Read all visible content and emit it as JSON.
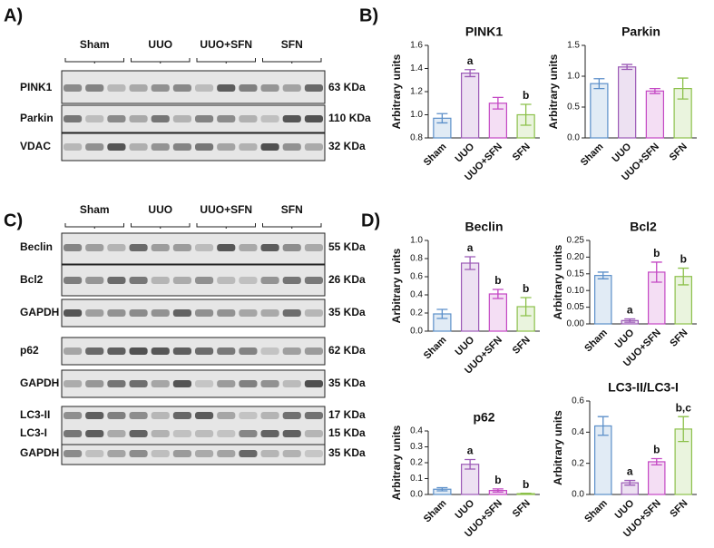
{
  "panel_labels": [
    "A)",
    "B)",
    "C)",
    "D)"
  ],
  "blots": [
    {
      "groups": [
        "Sham",
        "UUO",
        "UUO+SFN",
        "SFN"
      ],
      "rows": [
        {
          "labels": [
            "PINK1"
          ],
          "sizes": [
            "63 KDa"
          ]
        },
        {
          "labels": [
            "Parkin"
          ],
          "sizes": [
            "110 KDa"
          ]
        },
        {
          "labels": [
            "VDAC"
          ],
          "sizes": [
            "32 KDa"
          ]
        }
      ]
    },
    {
      "groups": [
        "Sham",
        "UUO",
        "UUO+SFN",
        "SFN"
      ],
      "rows": [
        {
          "labels": [
            "Beclin"
          ],
          "sizes": [
            "55 KDa"
          ]
        },
        {
          "labels": [
            "Bcl2"
          ],
          "sizes": [
            "26 KDa"
          ]
        },
        {
          "labels": [
            "GAPDH"
          ],
          "sizes": [
            "35 KDa"
          ]
        },
        {
          "labels": [
            "p62"
          ],
          "sizes": [
            "62 KDa"
          ]
        },
        {
          "labels": [
            "GAPDH"
          ],
          "sizes": [
            "35 KDa"
          ]
        },
        {
          "labels": [
            "LC3-II",
            "LC3-I"
          ],
          "sizes": [
            "17 KDa",
            "15 KDa"
          ]
        },
        {
          "labels": [
            "GAPDH"
          ],
          "sizes": [
            "35 KDa"
          ]
        }
      ]
    }
  ],
  "chart_data": [
    {
      "type": "bar",
      "title": "PINK1",
      "y_label": "Arbitrary units",
      "categories": [
        "Sham",
        "UUO",
        "UUO+SFN",
        "SFN"
      ],
      "colors": [
        "#5b8fc9",
        "#9b59b6",
        "#c447c4",
        "#8cc04a"
      ],
      "values": [
        0.97,
        1.36,
        1.1,
        1.0
      ],
      "errors": [
        0.04,
        0.03,
        0.05,
        0.09
      ],
      "annotations": [
        null,
        "a",
        null,
        "b"
      ],
      "ylim": [
        0.8,
        1.6
      ],
      "yticks": [
        0.8,
        {
          "value": 1,
          "label": "1.0"
        },
        1.2,
        1.4,
        1.6
      ]
    },
    {
      "type": "bar",
      "title": "Parkin",
      "y_label": "Arbitrary units",
      "categories": [
        "Sham",
        "UUO",
        "UUO+SFN",
        "SFN"
      ],
      "colors": [
        "#5b8fc9",
        "#9b59b6",
        "#c447c4",
        "#8cc04a"
      ],
      "values": [
        0.88,
        1.15,
        0.76,
        0.8
      ],
      "errors": [
        0.08,
        0.04,
        0.04,
        0.17
      ],
      "ylim": [
        0,
        1.5
      ],
      "yticks": [
        {
          "value": 0,
          "label": "0.0"
        },
        0.5,
        {
          "value": 1,
          "label": "1.0"
        },
        1.5
      ]
    },
    {
      "type": "bar",
      "title": "Beclin",
      "y_label": "Arbitrary units",
      "categories": [
        "Sham",
        "UUO",
        "UUO+SFN",
        "SFN"
      ],
      "colors": [
        "#5b8fc9",
        "#9b59b6",
        "#c447c4",
        "#8cc04a"
      ],
      "values": [
        0.19,
        0.75,
        0.41,
        0.27
      ],
      "errors": [
        0.05,
        0.07,
        0.05,
        0.1
      ],
      "annotations": [
        null,
        "a",
        "b",
        "b"
      ],
      "ylim": [
        0,
        1
      ],
      "yticks": [
        {
          "value": 0,
          "label": "0.0"
        },
        0.2,
        0.4,
        0.6,
        0.8,
        {
          "value": 1,
          "label": "1.0"
        }
      ]
    },
    {
      "type": "bar",
      "title": "Bcl2",
      "y_label": "Arbitrary units",
      "categories": [
        "Sham",
        "UUO",
        "UUO+SFN",
        "SFN"
      ],
      "colors": [
        "#5b8fc9",
        "#9b59b6",
        "#c447c4",
        "#8cc04a"
      ],
      "values": [
        0.145,
        0.01,
        0.155,
        0.142
      ],
      "errors": [
        0.01,
        0.005,
        0.03,
        0.025
      ],
      "annotations": [
        null,
        "a",
        "b",
        "b"
      ],
      "ylim": [
        0,
        0.25
      ],
      "yticks": [
        {
          "value": 0,
          "label": "0.00"
        },
        0.05,
        {
          "value": 0.1,
          "label": "0.10"
        },
        0.15,
        {
          "value": 0.2,
          "label": "0.20"
        },
        0.25
      ]
    },
    {
      "type": "bar",
      "title": "p62",
      "y_label": "Arbitrary units",
      "categories": [
        "Sham",
        "UUO",
        "UUO+SFN",
        "SFN"
      ],
      "colors": [
        "#5b8fc9",
        "#9b59b6",
        "#c447c4",
        "#8cc04a"
      ],
      "values": [
        0.033,
        0.19,
        0.025,
        0.005
      ],
      "errors": [
        0.01,
        0.03,
        0.01,
        0.003
      ],
      "annotations": [
        null,
        "a",
        "b",
        "b"
      ],
      "ylim": [
        0,
        0.4
      ],
      "yticks": [
        {
          "value": 0,
          "label": "0.0"
        },
        0.1,
        0.2,
        0.3,
        0.4
      ]
    },
    {
      "type": "bar",
      "title": "LC3-II/LC3-I",
      "y_label": "Arbitrary units",
      "categories": [
        "Sham",
        "UUO",
        "UUO+SFN",
        "SFN"
      ],
      "colors": [
        "#5b8fc9",
        "#9b59b6",
        "#c447c4",
        "#8cc04a"
      ],
      "values": [
        0.44,
        0.075,
        0.21,
        0.42
      ],
      "errors": [
        0.06,
        0.015,
        0.02,
        0.08
      ],
      "annotations": [
        null,
        "a",
        "b",
        "b,c"
      ],
      "ylim": [
        0,
        0.6
      ],
      "yticks": [
        {
          "value": 0,
          "label": "0.0"
        },
        0.2,
        0.4,
        0.6
      ]
    }
  ]
}
